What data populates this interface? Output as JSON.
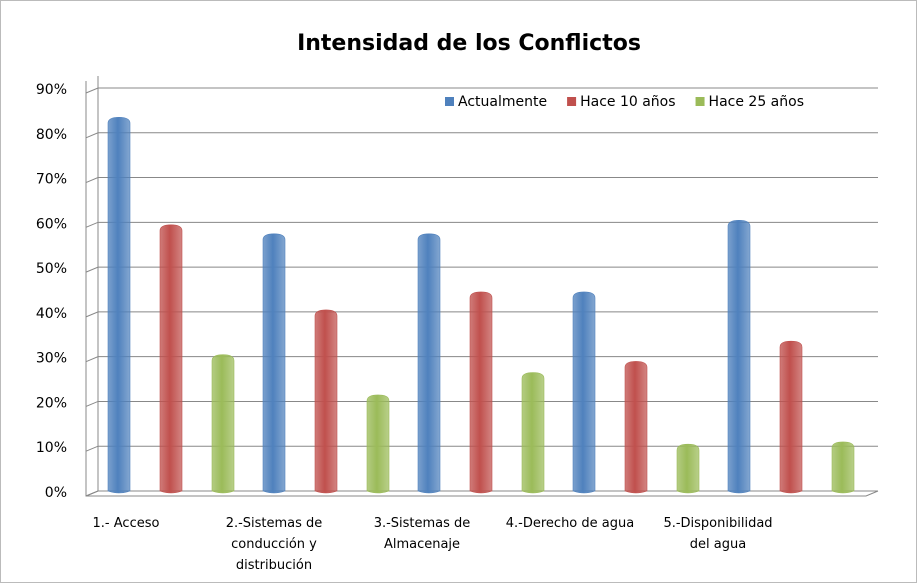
{
  "chart_data": {
    "type": "bar",
    "title": "Intensidad de los Conflictos",
    "categories": [
      "1.- Acceso",
      "2.-Sistemas de conducción y distribución",
      "3.-Sistemas de Almacenaje",
      "4.-Derecho de agua",
      "5.-Disponibilidad del agua"
    ],
    "series": [
      {
        "name": "Actualmente",
        "color": "#4f81bd",
        "values": [
          83,
          57,
          57,
          44,
          60
        ]
      },
      {
        "name": "Hace 10 años",
        "color": "#c0504d",
        "values": [
          59,
          40,
          44,
          28.5,
          33
        ]
      },
      {
        "name": "Hace 25 años",
        "color": "#9bbb59",
        "values": [
          30,
          21,
          26,
          10,
          10.5
        ]
      }
    ],
    "ylim": [
      0,
      90
    ],
    "yticks": [
      {
        "value": 0,
        "label": "0%"
      },
      {
        "value": 10,
        "label": "10%"
      },
      {
        "value": 20,
        "label": "20%"
      },
      {
        "value": 30,
        "label": "30%"
      },
      {
        "value": 40,
        "label": "40%"
      },
      {
        "value": 50,
        "label": "50%"
      },
      {
        "value": 60,
        "label": "60%"
      },
      {
        "value": 70,
        "label": "70%"
      },
      {
        "value": 80,
        "label": "80%"
      },
      {
        "value": 90,
        "label": "90%"
      }
    ],
    "grid": true,
    "legend": "top-right"
  }
}
